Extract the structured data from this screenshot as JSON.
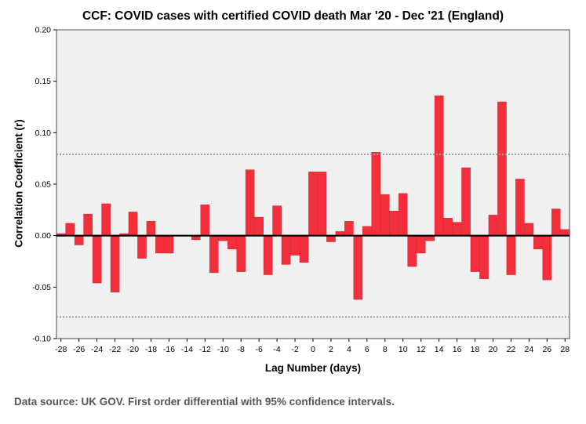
{
  "chart_data": {
    "type": "bar",
    "title": "CCF: COVID cases with certified COVID death Mar '20 - Dec '21 (England)",
    "xlabel": "Lag Number (days)",
    "ylabel": "Correlation Coefficient (r)",
    "x": [
      -28,
      -27,
      -26,
      -25,
      -24,
      -23,
      -22,
      -21,
      -20,
      -19,
      -18,
      -17,
      -16,
      -15,
      -14,
      -13,
      -12,
      -11,
      -10,
      -9,
      -8,
      -7,
      -6,
      -5,
      -4,
      -3,
      -2,
      -1,
      0,
      1,
      2,
      3,
      4,
      5,
      6,
      7,
      8,
      9,
      10,
      11,
      12,
      13,
      14,
      15,
      16,
      17,
      18,
      19,
      20,
      21,
      22,
      23,
      24,
      25,
      26,
      27,
      28
    ],
    "values": [
      0.002,
      0.012,
      -0.009,
      0.021,
      -0.046,
      0.031,
      -0.055,
      0.002,
      0.023,
      -0.022,
      0.014,
      -0.017,
      -0.017,
      0.0,
      0.0,
      -0.004,
      0.03,
      -0.036,
      -0.005,
      -0.013,
      -0.035,
      0.064,
      0.018,
      -0.038,
      0.029,
      -0.028,
      -0.019,
      -0.026,
      0.062,
      0.062,
      -0.006,
      0.004,
      0.014,
      -0.062,
      0.009,
      0.081,
      0.04,
      0.024,
      0.041,
      -0.03,
      -0.017,
      -0.005,
      0.136,
      0.017,
      0.013,
      0.066,
      -0.035,
      -0.042,
      0.02,
      0.13,
      -0.038,
      0.055,
      0.012,
      -0.013,
      -0.043,
      0.026,
      0.006
    ],
    "confidence_interval": {
      "upper": 0.079,
      "lower": -0.079
    },
    "ylim": [
      -0.1,
      0.2
    ],
    "xlim": [
      -28.5,
      28.5
    ],
    "yticks": [
      -0.1,
      -0.05,
      0.0,
      0.05,
      0.1,
      0.15,
      0.2
    ],
    "ytick_labels": [
      "-0.10",
      "-0.05",
      "0.00",
      "0.05",
      "0.10",
      "0.15",
      "0.20"
    ],
    "xticks": [
      -28,
      -26,
      -24,
      -22,
      -20,
      -18,
      -16,
      -14,
      -12,
      -10,
      -8,
      -6,
      -4,
      -2,
      0,
      2,
      4,
      6,
      8,
      10,
      12,
      14,
      16,
      18,
      20,
      22,
      24,
      26,
      28
    ],
    "xtick_labels": [
      "-28",
      "-26",
      "-24",
      "-22",
      "-20",
      "-18",
      "-16",
      "-14",
      "-12",
      "-10",
      "-8",
      "-6",
      "-4",
      "-2",
      "0",
      "2",
      "4",
      "6",
      "8",
      "10",
      "12",
      "14",
      "16",
      "18",
      "20",
      "22",
      "24",
      "26",
      "28"
    ],
    "colors": {
      "bar": "#f22f3a",
      "bar_edge": "#c0202a",
      "plot_bg": "#f0f0f0",
      "ci_line": "#a0a0a0",
      "zero_line": "#000000"
    },
    "source": "Data source: UK GOV. First order differential with 95% confidence intervals."
  }
}
